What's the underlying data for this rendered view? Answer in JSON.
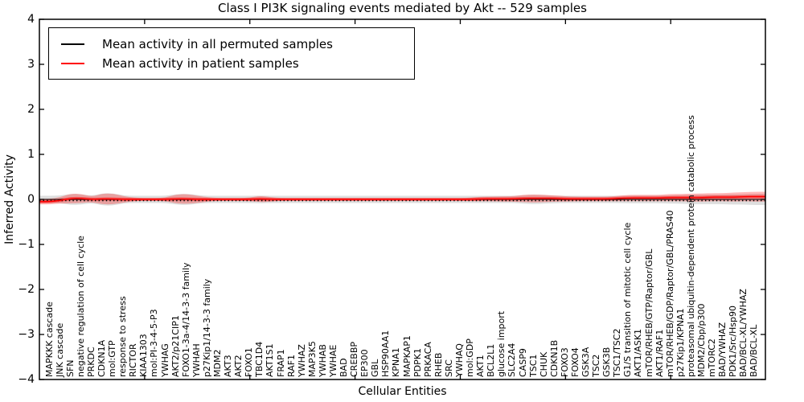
{
  "title": "Class I PI3K signaling events mediated by Akt -- 529 samples",
  "axes": {
    "ylabel": "Inferred Activity",
    "xlabel": "Cellular Entities",
    "ytick_labels": [
      "4",
      "3",
      "2",
      "1",
      "0",
      "−1",
      "−2",
      "−3",
      "−4"
    ]
  },
  "legend": {
    "items": [
      {
        "label": "Mean activity in all permuted samples",
        "color": "#000000"
      },
      {
        "label": "Mean activity in patient samples",
        "color": "#ff0000"
      }
    ]
  },
  "colors": {
    "patient_line": "#ff0000",
    "patient_fill": "rgba(255,0,0,0.28)",
    "patient_core_fill": "rgba(255,0,0,0.45)",
    "permuted_line": "#000000",
    "permuted_band": "rgba(0,0,0,0.13)",
    "axis": "#000000"
  },
  "chart_data": {
    "type": "line",
    "title": "Class I PI3K signaling events mediated by Akt -- 529 samples",
    "xlabel": "Cellular Entities",
    "ylabel": "Inferred Activity",
    "ylim": [
      -4,
      4
    ],
    "yticks": [
      4,
      3,
      2,
      1,
      0,
      -1,
      -2,
      -3,
      -4
    ],
    "xtick_values": [
      10,
      20,
      30,
      40,
      50,
      60
    ],
    "grid": false,
    "legend_position": "upper left",
    "categories": [
      "MAPKKK cascade",
      "JNK cascade",
      "SFN",
      "negative regulation of cell cycle",
      "PRKDC",
      "CDKN1A",
      "mol:GTP",
      "response to stress",
      "RICTOR",
      "KIAA1303",
      "mol:PI-3-4-5-P3",
      "YWHAG",
      "AKT2/p21CIP1",
      "FOXO1-3a-4/14-3-3 family",
      "YWHAH",
      "p27Kip1/14-3-3 family",
      "MDM2",
      "AKT3",
      "AKT2",
      "FOXO1",
      "TBC1D4",
      "AKT1S1",
      "FRAP1",
      "RAF1",
      "YWHAZ",
      "MAP3K5",
      "YWHAB",
      "YWHAE",
      "BAD",
      "CREBBP",
      "EP300",
      "GBL",
      "HSP90AA1",
      "KPNA1",
      "MAPKAP1",
      "PDPK1",
      "PRKACA",
      "RHEB",
      "SRC",
      "YWHAQ",
      "mol:GDP",
      "AKT1",
      "BCL2L1",
      "glucose import",
      "SLC2A4",
      "CASP9",
      "TSC1",
      "CHUK",
      "CDKN1B",
      "FOXO3",
      "FOXO4",
      "GSK3A",
      "TSC2",
      "GSK3B",
      "TSC1/TSC2",
      "G1/S transition of mitotic cell cycle",
      "AKT1/ASK1",
      "mTOR/RHEB/GTP/Raptor/GBL",
      "AKT1/RAF1",
      "mTOR/RHEB/GDP/Raptor/GBL/PRAS40",
      "p27Kip1/KPNA1",
      "proteasomal ubiquitin-dependent protein catabolic process",
      "MDM2/Cbp/p300",
      "mTORC2",
      "BAD/YWHAZ",
      "PDK1/Src/Hsp90",
      "BAD/BCL-XL/YWHAZ",
      "BAD/BCL-XL"
    ],
    "series": [
      {
        "name": "Mean activity in all permuted samples",
        "color": "#000000",
        "style": "dotted",
        "values": [
          0,
          0,
          0,
          0,
          0,
          0,
          0,
          0,
          0,
          0,
          0,
          0,
          0,
          0,
          0,
          0,
          0,
          0,
          0,
          0,
          0,
          0,
          0,
          0,
          0,
          0,
          0,
          0,
          0,
          0,
          0,
          0,
          0,
          0,
          0,
          0,
          0,
          0,
          0,
          0,
          0,
          0,
          0,
          0,
          0,
          0,
          0,
          0,
          0,
          0,
          0,
          0,
          0,
          0,
          0,
          0,
          0,
          0,
          0,
          0,
          0,
          0,
          0,
          0,
          0,
          0,
          0,
          0
        ]
      },
      {
        "name": "Mean activity in patient samples",
        "color": "#ff0000",
        "style": "solid",
        "values": [
          -0.05,
          -0.02,
          0.02,
          0.02,
          0,
          0.01,
          0.01,
          0,
          0,
          0,
          0,
          0,
          0.01,
          0.01,
          0,
          0,
          0,
          0,
          0,
          0,
          0.01,
          0,
          0,
          0,
          0,
          0,
          0,
          0,
          0,
          0,
          0,
          0,
          0,
          0,
          0,
          0,
          0,
          0,
          0,
          0,
          0,
          0.01,
          0.01,
          0.01,
          0.01,
          0.02,
          0.02,
          0.02,
          0.02,
          0.01,
          0.01,
          0.01,
          0.01,
          0.01,
          0.02,
          0.03,
          0.03,
          0.03,
          0.03,
          0.04,
          0.04,
          0.04,
          0.04,
          0.05,
          0.05,
          0.05,
          0.06,
          0.06
        ]
      }
    ],
    "patient_spread": [
      0.06,
      0.07,
      0.11,
      0.1,
      0.06,
      0.12,
      0.12,
      0.07,
      0.04,
      0.03,
      0.03,
      0.04,
      0.1,
      0.11,
      0.08,
      0.05,
      0.03,
      0.03,
      0.03,
      0.04,
      0.07,
      0.05,
      0.03,
      0.03,
      0.03,
      0.03,
      0.03,
      0.03,
      0.03,
      0.03,
      0.03,
      0.03,
      0.03,
      0.03,
      0.03,
      0.03,
      0.03,
      0.03,
      0.03,
      0.03,
      0.04,
      0.05,
      0.05,
      0.06,
      0.06,
      0.08,
      0.09,
      0.08,
      0.07,
      0.06,
      0.05,
      0.05,
      0.05,
      0.05,
      0.06,
      0.07,
      0.07,
      0.07,
      0.07,
      0.08,
      0.08,
      0.09,
      0.09,
      0.09,
      0.09,
      0.1,
      0.1,
      0.11
    ]
  }
}
